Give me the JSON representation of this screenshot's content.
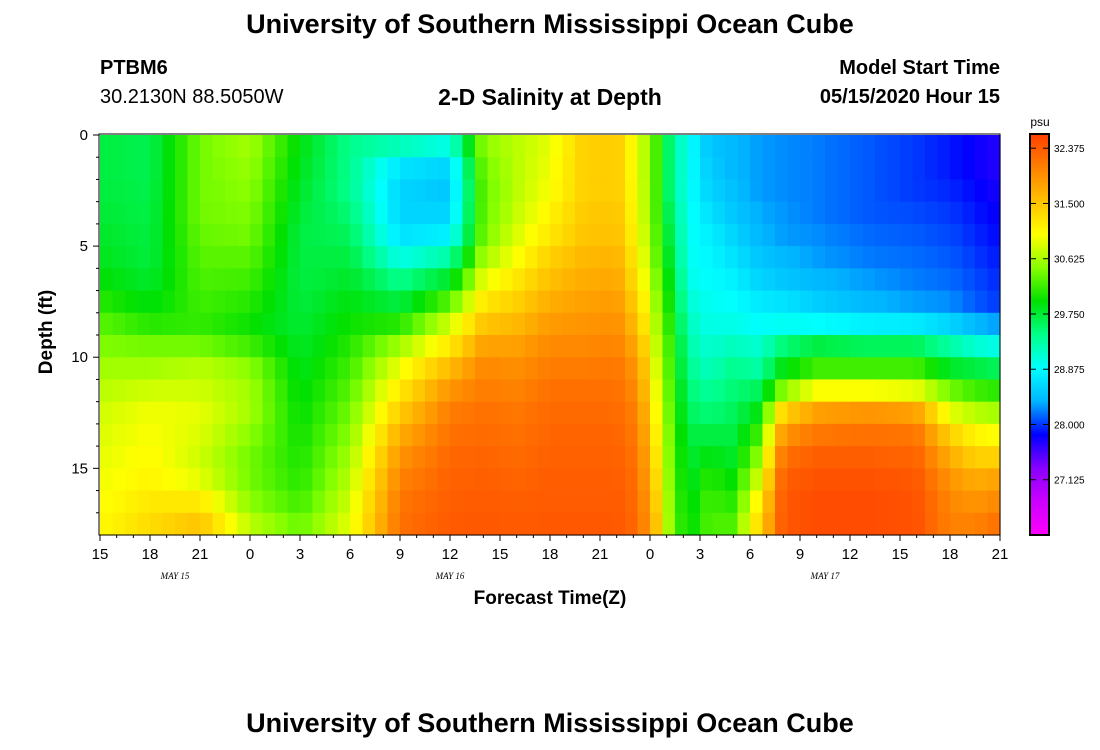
{
  "header": {
    "title": "University of Southern Mississippi Ocean Cube",
    "footer_title": "University of Southern Mississippi Ocean Cube",
    "station_id": "PTBM6",
    "station_coords": "30.2130N 88.5050W",
    "chart_title": "2-D Salinity at Depth",
    "model_start_label": "Model Start Time",
    "model_start_time": "05/15/2020 Hour 15"
  },
  "chart_data": {
    "type": "heatmap",
    "title": "2-D Salinity at Depth",
    "xlabel": "Forecast Time(Z)",
    "ylabel": "Depth (ft)",
    "x_range_hours": [
      0,
      54
    ],
    "ylim": [
      0,
      18
    ],
    "y_ticks": [
      0,
      5,
      10,
      15
    ],
    "y_tick_labels": [
      "0",
      "5",
      "10",
      "15"
    ],
    "x_tick_hours": [
      0,
      3,
      6,
      9,
      12,
      15,
      18,
      21,
      24,
      27,
      30,
      33,
      36,
      39,
      42,
      45,
      48,
      51,
      54
    ],
    "x_tick_labels": [
      "15",
      "18",
      "21",
      "0",
      "3",
      "6",
      "9",
      "12",
      "15",
      "18",
      "21",
      "0",
      "3",
      "6",
      "9",
      "12",
      "15",
      "18",
      "21"
    ],
    "date_labels": [
      {
        "hour": 4.5,
        "text": "MAY 15"
      },
      {
        "hour": 21,
        "text": "MAY 16"
      },
      {
        "hour": 43.5,
        "text": "MAY 17"
      }
    ],
    "colorbar": {
      "unit": "psu",
      "min": 26.25,
      "max": 32.6,
      "tick_values": [
        32.375,
        31.5,
        30.625,
        29.75,
        28.875,
        28.0,
        27.125
      ],
      "tick_labels": [
        "32.375",
        "31.500",
        "30.625",
        "29.750",
        "28.875",
        "28.000",
        "27.125"
      ]
    },
    "columns": [
      {
        "h": 0,
        "s": [
          29.7,
          29.7,
          29.72,
          29.75,
          29.8,
          29.85,
          29.95,
          30.1,
          30.3,
          30.45,
          30.6,
          30.7,
          30.8,
          30.85,
          30.9,
          30.95,
          31.0,
          31.05
        ]
      },
      {
        "h": 3,
        "s": [
          29.65,
          29.65,
          29.66,
          29.68,
          29.7,
          29.72,
          29.78,
          29.9,
          30.1,
          30.4,
          30.6,
          30.8,
          30.95,
          31.0,
          31.05,
          31.1,
          31.2,
          31.3
        ]
      },
      {
        "h": 6,
        "s": [
          30.4,
          30.4,
          30.4,
          30.4,
          30.35,
          30.3,
          30.25,
          30.2,
          30.15,
          30.4,
          30.7,
          30.8,
          30.9,
          30.85,
          30.8,
          30.9,
          31.2,
          31.5
        ]
      },
      {
        "h": 9,
        "s": [
          30.6,
          30.55,
          30.5,
          30.45,
          30.4,
          30.3,
          30.2,
          30.1,
          30.0,
          30.2,
          30.5,
          30.6,
          30.6,
          30.5,
          30.4,
          30.4,
          30.5,
          30.7
        ]
      },
      {
        "h": 12,
        "s": [
          29.9,
          29.85,
          29.8,
          29.75,
          29.7,
          29.7,
          29.7,
          29.72,
          29.75,
          29.8,
          29.85,
          29.9,
          29.95,
          30.0,
          30.05,
          30.1,
          30.2,
          30.35
        ]
      },
      {
        "h": 15,
        "s": [
          29.4,
          29.4,
          29.4,
          29.5,
          29.6,
          29.7,
          29.8,
          29.9,
          30.0,
          30.1,
          30.2,
          30.3,
          30.4,
          30.5,
          30.6,
          30.7,
          30.8,
          30.9
        ]
      },
      {
        "h": 18,
        "s": [
          29.2,
          28.7,
          28.6,
          28.6,
          28.7,
          29.0,
          29.4,
          29.7,
          30.1,
          30.6,
          30.95,
          31.2,
          31.45,
          31.7,
          31.9,
          32.05,
          32.15,
          32.2
        ]
      },
      {
        "h": 21,
        "s": [
          29.0,
          28.6,
          28.5,
          28.6,
          28.8,
          29.3,
          29.8,
          30.3,
          30.8,
          31.2,
          31.6,
          31.9,
          32.1,
          32.2,
          32.28,
          32.32,
          32.35,
          32.38
        ]
      },
      {
        "h": 23,
        "s": [
          30.5,
          30.4,
          30.35,
          30.35,
          30.4,
          30.6,
          30.9,
          31.2,
          31.5,
          31.8,
          32.0,
          32.1,
          32.2,
          32.25,
          32.3,
          32.35,
          32.38,
          32.4
        ]
      },
      {
        "h": 25,
        "s": [
          30.7,
          30.7,
          30.7,
          30.75,
          30.85,
          31.0,
          31.2,
          31.4,
          31.6,
          31.8,
          31.95,
          32.05,
          32.15,
          32.2,
          32.25,
          32.3,
          32.35,
          32.38
        ]
      },
      {
        "h": 27,
        "s": [
          30.9,
          30.95,
          31.0,
          31.1,
          31.2,
          31.4,
          31.55,
          31.7,
          31.85,
          32.0,
          32.1,
          32.2,
          32.25,
          32.3,
          32.33,
          32.36,
          32.38,
          32.4
        ]
      },
      {
        "h": 29,
        "s": [
          31.4,
          31.4,
          31.4,
          31.45,
          31.5,
          31.6,
          31.7,
          31.8,
          31.9,
          32.0,
          32.1,
          32.2,
          32.25,
          32.3,
          32.33,
          32.36,
          32.38,
          32.4
        ]
      },
      {
        "h": 31,
        "s": [
          31.45,
          31.45,
          31.45,
          31.5,
          31.55,
          31.65,
          31.75,
          31.85,
          31.95,
          32.05,
          32.15,
          32.2,
          32.25,
          32.3,
          32.33,
          32.36,
          32.38,
          32.4
        ]
      },
      {
        "h": 32.3,
        "s": [
          30.9,
          30.9,
          30.92,
          30.95,
          31.0,
          31.1,
          31.2,
          31.35,
          31.5,
          31.7,
          31.85,
          31.95,
          32.05,
          32.1,
          32.15,
          32.2,
          32.22,
          32.25
        ]
      },
      {
        "h": 33.3,
        "s": [
          30.3,
          30.3,
          30.3,
          30.3,
          30.35,
          30.4,
          30.5,
          30.6,
          30.7,
          30.8,
          30.9,
          31.0,
          31.1,
          31.2,
          31.3,
          31.4,
          31.5,
          31.6
        ]
      },
      {
        "h": 34.3,
        "s": [
          29.4,
          29.4,
          29.4,
          29.5,
          29.6,
          29.7,
          29.8,
          29.9,
          30.0,
          30.1,
          30.15,
          30.2,
          30.25,
          30.3,
          30.32,
          30.35,
          30.38,
          30.4
        ]
      },
      {
        "h": 35.3,
        "s": [
          28.95,
          28.95,
          28.95,
          28.95,
          28.95,
          28.95,
          29.0,
          29.1,
          29.2,
          29.3,
          29.4,
          29.5,
          29.6,
          29.7,
          29.75,
          29.8,
          29.85,
          29.9
        ]
      },
      {
        "h": 36.5,
        "s": [
          28.5,
          28.55,
          28.6,
          28.7,
          28.8,
          28.85,
          28.9,
          28.95,
          29.0,
          29.1,
          29.2,
          29.35,
          29.5,
          29.7,
          29.9,
          30.1,
          30.2,
          30.25
        ]
      },
      {
        "h": 38,
        "s": [
          28.4,
          28.4,
          28.45,
          28.5,
          28.6,
          28.7,
          28.8,
          28.9,
          29.0,
          29.2,
          29.4,
          29.5,
          29.6,
          29.7,
          29.8,
          29.95,
          30.1,
          30.25
        ]
      },
      {
        "h": 39.5,
        "s": [
          28.3,
          28.3,
          28.3,
          28.35,
          28.4,
          28.5,
          28.6,
          28.75,
          28.9,
          29.1,
          29.3,
          29.6,
          29.9,
          30.2,
          30.5,
          30.8,
          31.1,
          31.3
        ]
      },
      {
        "h": 41,
        "s": [
          28.25,
          28.25,
          28.25,
          28.28,
          28.3,
          28.4,
          28.5,
          28.7,
          28.95,
          29.5,
          29.9,
          30.5,
          31.4,
          31.9,
          32.2,
          32.35,
          32.4,
          32.4
        ]
      },
      {
        "h": 43,
        "s": [
          28.2,
          28.2,
          28.2,
          28.2,
          28.25,
          28.3,
          28.4,
          28.55,
          28.9,
          29.7,
          30.2,
          31.0,
          31.8,
          32.15,
          32.35,
          32.45,
          32.5,
          32.5
        ]
      },
      {
        "h": 46,
        "s": [
          28.1,
          28.1,
          28.1,
          28.1,
          28.15,
          28.2,
          28.3,
          28.4,
          28.8,
          29.6,
          30.2,
          31.0,
          31.9,
          32.2,
          32.35,
          32.45,
          32.5,
          32.5
        ]
      },
      {
        "h": 49,
        "s": [
          28.0,
          28.0,
          28.0,
          28.05,
          28.1,
          28.15,
          28.2,
          28.3,
          28.75,
          29.6,
          30.2,
          30.9,
          31.8,
          32.15,
          32.3,
          32.4,
          32.45,
          32.45
        ]
      },
      {
        "h": 51,
        "s": [
          27.9,
          27.9,
          27.95,
          28.0,
          28.05,
          28.1,
          28.15,
          28.25,
          28.6,
          29.3,
          29.8,
          30.4,
          30.9,
          31.4,
          31.7,
          31.9,
          32.0,
          32.05
        ]
      },
      {
        "h": 52.5,
        "s": [
          27.8,
          27.8,
          27.85,
          27.9,
          27.95,
          28.0,
          28.05,
          28.1,
          28.4,
          29.1,
          29.7,
          30.2,
          30.7,
          31.1,
          31.4,
          31.7,
          31.9,
          32.05
        ]
      },
      {
        "h": 54,
        "s": [
          27.7,
          27.7,
          27.75,
          27.8,
          27.85,
          27.9,
          27.95,
          28.0,
          28.3,
          29.0,
          29.6,
          30.1,
          30.6,
          31.0,
          31.4,
          31.8,
          32.0,
          32.2
        ]
      }
    ]
  },
  "colors": {
    "scale": [
      "#ff00ff",
      "#cc00ff",
      "#8800ff",
      "#0000ff",
      "#00b4ff",
      "#00ffff",
      "#00ff88",
      "#00e000",
      "#88ff00",
      "#ffff00",
      "#ffc000",
      "#ff8000",
      "#ff4000"
    ]
  }
}
